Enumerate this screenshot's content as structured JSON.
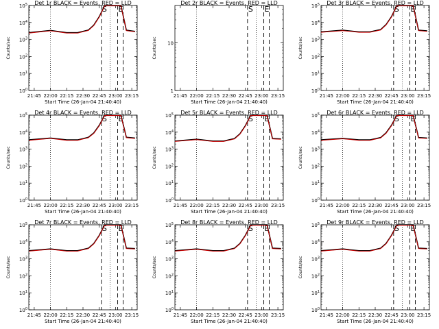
{
  "figure": {
    "ylabel": "Counts/sec",
    "xlabel": "Start Time (26-Jan-04 21:40:40)"
  },
  "chart_data": [
    {
      "type": "line",
      "title": "Det 1r BLACK = Events, RED = LLD",
      "series_ids": [
        "events",
        "lld"
      ],
      "x_ticks": [
        "21:45",
        "22:00",
        "22:15",
        "22:30",
        "22:45",
        "23:00",
        "23:15"
      ],
      "y_ticks": [
        "10^0",
        "10^1",
        "10^2",
        "10^3",
        "10^4",
        "10^5"
      ],
      "y_scale": "log",
      "ylim": [
        1,
        100000
      ],
      "xlim": [
        "21:40",
        "23:20"
      ],
      "markers": [
        {
          "label": "S",
          "time": "22:47"
        },
        {
          "label": "E",
          "time": "23:02"
        }
      ],
      "vlines_dotted": [
        "22:00",
        "22:55"
      ],
      "vlines_dashed": [
        "22:47",
        "23:02",
        "23:07"
      ],
      "series": [
        {
          "id": "events",
          "color": "#000000",
          "x": [
            "21:40",
            "22:00",
            "22:15",
            "22:25",
            "22:35",
            "22:40",
            "22:45",
            "22:50",
            "23:05",
            "23:10",
            "23:18"
          ],
          "y": [
            2500,
            3400,
            2500,
            2500,
            3600,
            7000,
            22000,
            180000,
            180000,
            3500,
            3000
          ]
        },
        {
          "id": "lld",
          "color": "#cc0000",
          "x": [
            "21:40",
            "22:00",
            "22:15",
            "22:25",
            "22:35",
            "22:40",
            "22:45",
            "22:50",
            "23:05",
            "23:10",
            "23:18"
          ],
          "y": [
            2500,
            3400,
            2500,
            2500,
            3600,
            7000,
            22000,
            180000,
            180000,
            3500,
            3000
          ]
        }
      ]
    },
    {
      "type": "line",
      "title": "Det 2r BLACK = Events, RED = LLD",
      "series_ids": [],
      "x_ticks": [
        "21:45",
        "22:00",
        "22:15",
        "22:30",
        "22:45",
        "23:00",
        "23:15"
      ],
      "y_ticks": [
        "1",
        "10"
      ],
      "y_scale": "log",
      "ylim": [
        1,
        60
      ],
      "xlim": [
        "21:40",
        "23:20"
      ],
      "markers": [
        {
          "label": "S",
          "time": "22:47"
        },
        {
          "label": "E",
          "time": "23:02"
        }
      ],
      "vlines_dotted": [
        "22:00",
        "22:55"
      ],
      "vlines_dashed": [
        "22:47",
        "23:02",
        "23:07"
      ],
      "series": []
    },
    {
      "type": "line",
      "title": "Det 3r BLACK = Events, RED = LLD",
      "series_ids": [
        "events",
        "lld"
      ],
      "x_ticks": [
        "21:45",
        "22:00",
        "22:15",
        "22:30",
        "22:45",
        "23:00",
        "23:15"
      ],
      "y_ticks": [
        "10^0",
        "10^1",
        "10^2",
        "10^3",
        "10^4",
        "10^5"
      ],
      "y_scale": "log",
      "ylim": [
        1,
        100000
      ],
      "xlim": [
        "21:40",
        "23:20"
      ],
      "markers": [
        {
          "label": "S",
          "time": "22:47"
        },
        {
          "label": "E",
          "time": "23:02"
        }
      ],
      "vlines_dotted": [
        "22:00",
        "22:55"
      ],
      "vlines_dashed": [
        "22:47",
        "23:02",
        "23:07"
      ],
      "series": [
        {
          "id": "events",
          "color": "#000000",
          "x": [
            "21:40",
            "22:00",
            "22:15",
            "22:25",
            "22:35",
            "22:40",
            "22:45",
            "22:50",
            "22:55",
            "23:00",
            "23:05",
            "23:10",
            "23:18"
          ],
          "y": [
            2800,
            3500,
            2800,
            2800,
            3800,
            7500,
            22000,
            150000,
            130000,
            150000,
            160000,
            3500,
            3200
          ]
        },
        {
          "id": "lld",
          "color": "#cc0000",
          "x": [
            "21:40",
            "22:00",
            "22:15",
            "22:25",
            "22:35",
            "22:40",
            "22:45",
            "22:50",
            "22:55",
            "23:00",
            "23:05",
            "23:10",
            "23:18"
          ],
          "y": [
            2800,
            3500,
            2800,
            2800,
            3800,
            7500,
            22000,
            150000,
            130000,
            150000,
            160000,
            3500,
            3200
          ]
        }
      ]
    },
    {
      "type": "line",
      "title": "Det 4r BLACK = Events, RED = LLD",
      "series_ids": [
        "events",
        "lld"
      ],
      "x_ticks": [
        "21:45",
        "22:00",
        "22:15",
        "22:30",
        "22:45",
        "23:00",
        "23:15"
      ],
      "y_ticks": [
        "10^0",
        "10^1",
        "10^2",
        "10^3",
        "10^4",
        "10^5"
      ],
      "y_scale": "log",
      "ylim": [
        1,
        100000
      ],
      "xlim": [
        "21:40",
        "23:20"
      ],
      "markers": [
        {
          "label": "S",
          "time": "22:47"
        },
        {
          "label": "E",
          "time": "23:02"
        }
      ],
      "vlines_dotted": [
        "22:00",
        "22:55"
      ],
      "vlines_dashed": [
        "22:47",
        "23:02",
        "23:07"
      ],
      "series": [
        {
          "id": "events",
          "color": "#000000",
          "x": [
            "21:40",
            "22:00",
            "22:15",
            "22:25",
            "22:35",
            "22:40",
            "22:45",
            "22:50",
            "23:05",
            "23:10",
            "23:18"
          ],
          "y": [
            3500,
            4500,
            3500,
            3500,
            5000,
            9000,
            25000,
            180000,
            180000,
            5000,
            4500
          ]
        },
        {
          "id": "lld",
          "color": "#cc0000",
          "x": [
            "21:40",
            "22:00",
            "22:15",
            "22:25",
            "22:35",
            "22:40",
            "22:45",
            "22:50",
            "23:05",
            "23:10",
            "23:18"
          ],
          "y": [
            3500,
            4500,
            3500,
            3500,
            5000,
            9000,
            25000,
            180000,
            180000,
            5000,
            4500
          ]
        }
      ]
    },
    {
      "type": "line",
      "title": "Det 5r BLACK = Events, RED = LLD",
      "series_ids": [
        "events",
        "lld"
      ],
      "x_ticks": [
        "21:45",
        "22:00",
        "22:15",
        "22:30",
        "22:45",
        "23:00",
        "23:15"
      ],
      "y_ticks": [
        "10^0",
        "10^1",
        "10^2",
        "10^3",
        "10^4",
        "10^5"
      ],
      "y_scale": "log",
      "ylim": [
        1,
        100000
      ],
      "xlim": [
        "21:40",
        "23:20"
      ],
      "markers": [
        {
          "label": "S",
          "time": "22:47"
        },
        {
          "label": "E",
          "time": "23:02"
        }
      ],
      "vlines_dotted": [
        "22:00",
        "22:55"
      ],
      "vlines_dashed": [
        "22:47",
        "23:02",
        "23:07"
      ],
      "series": [
        {
          "id": "events",
          "color": "#000000",
          "x": [
            "21:40",
            "22:00",
            "22:15",
            "22:25",
            "22:35",
            "22:40",
            "22:45",
            "22:50",
            "23:05",
            "23:10",
            "23:18"
          ],
          "y": [
            3000,
            3800,
            3000,
            3000,
            4200,
            8000,
            24000,
            180000,
            180000,
            4200,
            4000
          ]
        },
        {
          "id": "lld",
          "color": "#cc0000",
          "x": [
            "21:40",
            "22:00",
            "22:15",
            "22:25",
            "22:35",
            "22:40",
            "22:45",
            "22:50",
            "23:05",
            "23:10",
            "23:18"
          ],
          "y": [
            3000,
            3800,
            3000,
            3000,
            4200,
            8000,
            24000,
            180000,
            180000,
            4200,
            4000
          ]
        }
      ]
    },
    {
      "type": "line",
      "title": "Det 6r BLACK = Events, RED = LLD",
      "series_ids": [
        "events",
        "lld"
      ],
      "x_ticks": [
        "21:45",
        "22:00",
        "22:15",
        "22:30",
        "22:45",
        "23:00",
        "23:15"
      ],
      "y_ticks": [
        "10^0",
        "10^1",
        "10^2",
        "10^3",
        "10^4",
        "10^5"
      ],
      "y_scale": "log",
      "ylim": [
        1,
        100000
      ],
      "xlim": [
        "21:40",
        "23:20"
      ],
      "markers": [
        {
          "label": "S",
          "time": "22:47"
        },
        {
          "label": "E",
          "time": "23:02"
        }
      ],
      "vlines_dotted": [
        "22:00",
        "22:55"
      ],
      "vlines_dashed": [
        "22:47",
        "23:02",
        "23:07"
      ],
      "series": [
        {
          "id": "events",
          "color": "#000000",
          "x": [
            "21:40",
            "22:00",
            "22:15",
            "22:25",
            "22:35",
            "22:40",
            "22:45",
            "22:50",
            "23:05",
            "23:10",
            "23:18"
          ],
          "y": [
            3500,
            4300,
            3500,
            3500,
            4800,
            9000,
            25000,
            180000,
            180000,
            4800,
            4500
          ]
        },
        {
          "id": "lld",
          "color": "#cc0000",
          "x": [
            "21:40",
            "22:00",
            "22:15",
            "22:25",
            "22:35",
            "22:40",
            "22:45",
            "22:50",
            "23:05",
            "23:10",
            "23:18"
          ],
          "y": [
            3500,
            4300,
            3500,
            3500,
            4800,
            9000,
            25000,
            180000,
            180000,
            4800,
            4500
          ]
        }
      ]
    },
    {
      "type": "line",
      "title": "Det 7r BLACK = Events, RED = LLD",
      "series_ids": [
        "events",
        "lld"
      ],
      "x_ticks": [
        "21:45",
        "22:00",
        "22:15",
        "22:30",
        "22:45",
        "23:00",
        "23:15"
      ],
      "y_ticks": [
        "10^0",
        "10^1",
        "10^2",
        "10^3",
        "10^4",
        "10^5"
      ],
      "y_scale": "log",
      "ylim": [
        1,
        100000
      ],
      "xlim": [
        "21:40",
        "23:20"
      ],
      "markers": [
        {
          "label": "S",
          "time": "22:47"
        },
        {
          "label": "E",
          "time": "23:02"
        }
      ],
      "vlines_dotted": [
        "22:00",
        "22:55"
      ],
      "vlines_dashed": [
        "22:47",
        "23:02",
        "23:07"
      ],
      "series": [
        {
          "id": "events",
          "color": "#000000",
          "x": [
            "21:40",
            "22:00",
            "22:15",
            "22:25",
            "22:35",
            "22:40",
            "22:45",
            "22:50",
            "23:05",
            "23:10",
            "23:18"
          ],
          "y": [
            3000,
            3800,
            3000,
            3000,
            4200,
            8000,
            24000,
            200000,
            200000,
            4200,
            4000
          ]
        },
        {
          "id": "lld",
          "color": "#cc0000",
          "x": [
            "21:40",
            "22:00",
            "22:15",
            "22:25",
            "22:35",
            "22:40",
            "22:45",
            "22:50",
            "23:05",
            "23:10",
            "23:18"
          ],
          "y": [
            3000,
            3800,
            3000,
            3000,
            4200,
            8000,
            24000,
            200000,
            200000,
            4200,
            4000
          ]
        }
      ]
    },
    {
      "type": "line",
      "title": "Det 8r BLACK = Events, RED = LLD",
      "series_ids": [
        "events",
        "lld"
      ],
      "x_ticks": [
        "21:45",
        "22:00",
        "22:15",
        "22:30",
        "22:45",
        "23:00",
        "23:15"
      ],
      "y_ticks": [
        "10^0",
        "10^1",
        "10^2",
        "10^3",
        "10^4",
        "10^5"
      ],
      "y_scale": "log",
      "ylim": [
        1,
        100000
      ],
      "xlim": [
        "21:40",
        "23:20"
      ],
      "markers": [
        {
          "label": "S",
          "time": "22:47"
        },
        {
          "label": "E",
          "time": "23:02"
        }
      ],
      "vlines_dotted": [
        "22:00",
        "22:55"
      ],
      "vlines_dashed": [
        "22:47",
        "23:02",
        "23:07"
      ],
      "series": [
        {
          "id": "events",
          "color": "#000000",
          "x": [
            "21:40",
            "22:00",
            "22:15",
            "22:25",
            "22:35",
            "22:40",
            "22:45",
            "22:50",
            "23:05",
            "23:10",
            "23:18"
          ],
          "y": [
            3000,
            3800,
            3000,
            3000,
            4200,
            8000,
            24000,
            200000,
            200000,
            4200,
            4000
          ]
        },
        {
          "id": "lld",
          "color": "#cc0000",
          "x": [
            "21:40",
            "22:00",
            "22:15",
            "22:25",
            "22:35",
            "22:40",
            "22:45",
            "22:50",
            "23:05",
            "23:10",
            "23:18"
          ],
          "y": [
            3000,
            3800,
            3000,
            3000,
            4200,
            8000,
            24000,
            200000,
            200000,
            4200,
            4000
          ]
        }
      ]
    },
    {
      "type": "line",
      "title": "Det 9r BLACK = Events, RED = LLD",
      "series_ids": [
        "events",
        "lld"
      ],
      "x_ticks": [
        "21:45",
        "22:00",
        "22:15",
        "22:30",
        "22:45",
        "23:00",
        "23:15"
      ],
      "y_ticks": [
        "10^0",
        "10^1",
        "10^2",
        "10^3",
        "10^4",
        "10^5"
      ],
      "y_scale": "log",
      "ylim": [
        1,
        100000
      ],
      "xlim": [
        "21:40",
        "23:20"
      ],
      "markers": [
        {
          "label": "S",
          "time": "22:47"
        },
        {
          "label": "E",
          "time": "23:02"
        }
      ],
      "vlines_dotted": [
        "22:00",
        "22:55"
      ],
      "vlines_dashed": [
        "22:47",
        "23:02",
        "23:07"
      ],
      "series": [
        {
          "id": "events",
          "color": "#000000",
          "x": [
            "21:40",
            "22:00",
            "22:15",
            "22:25",
            "22:35",
            "22:40",
            "22:45",
            "22:50",
            "23:05",
            "23:10",
            "23:18"
          ],
          "y": [
            3000,
            3800,
            3000,
            3000,
            4200,
            8000,
            24000,
            200000,
            200000,
            4200,
            4000
          ]
        },
        {
          "id": "lld",
          "color": "#cc0000",
          "x": [
            "21:40",
            "22:00",
            "22:15",
            "22:25",
            "22:35",
            "22:40",
            "22:45",
            "22:50",
            "23:05",
            "23:10",
            "23:18"
          ],
          "y": [
            3000,
            3800,
            3000,
            3000,
            4200,
            8000,
            24000,
            200000,
            200000,
            4200,
            4000
          ]
        }
      ]
    }
  ]
}
